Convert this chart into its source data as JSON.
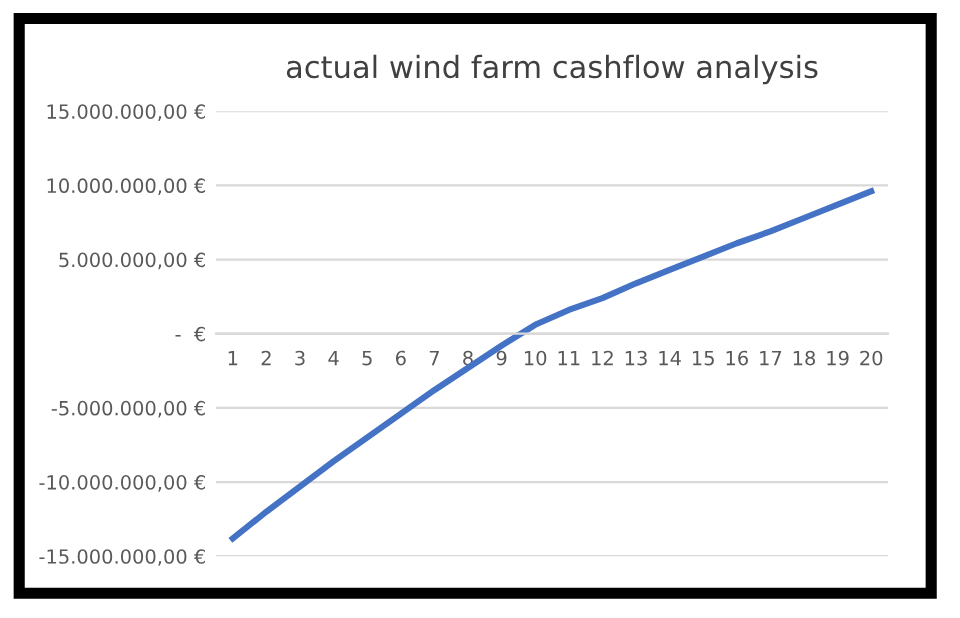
{
  "chart_data": {
    "type": "line",
    "title": "actual wind farm cashflow analysis",
    "categories": [
      "1",
      "2",
      "3",
      "4",
      "5",
      "6",
      "7",
      "8",
      "9",
      "10",
      "11",
      "12",
      "13",
      "14",
      "15",
      "16",
      "17",
      "18",
      "19",
      "20"
    ],
    "series": [
      {
        "color": "#4472c4",
        "values": [
          -13800000,
          -12000000,
          -10300000,
          -8600000,
          -7000000,
          -5400000,
          -3800000,
          -2300000,
          -800000,
          600000,
          1600000,
          2400000,
          3400000,
          4300000,
          5200000,
          6100000,
          6900000,
          7800000,
          8700000,
          9600000
        ]
      }
    ],
    "ylim": [
      -15000000,
      15000000
    ],
    "yticks": [
      {
        "value": -15000000,
        "label": "-15.000.000,00 €"
      },
      {
        "value": -10000000,
        "label": "-10.000.000,00 €"
      },
      {
        "value": -5000000,
        "label": "-5.000.000,00 €"
      },
      {
        "value": 0,
        "label": "-  €"
      },
      {
        "value": 5000000,
        "label": "5.000.000,00 €"
      },
      {
        "value": 10000000,
        "label": "10.000.000,00 €"
      },
      {
        "value": 15000000,
        "label": "15.000.000,00 €"
      }
    ],
    "grid": "y",
    "marker": "none",
    "line_style": "solid"
  }
}
